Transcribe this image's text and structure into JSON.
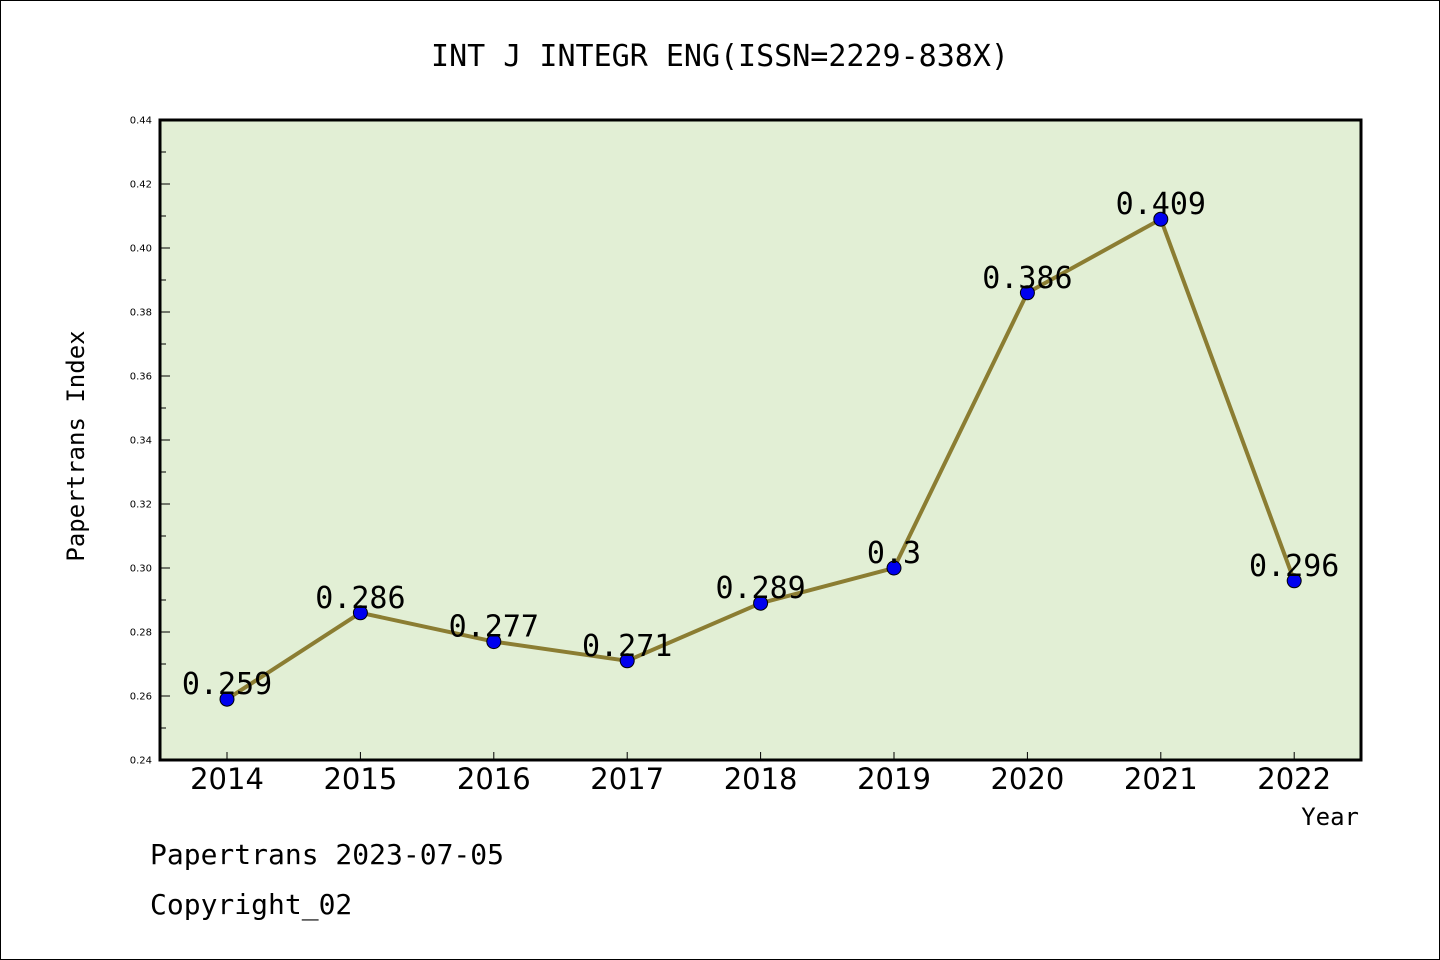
{
  "chart_data": {
    "type": "line",
    "title": "INT J INTEGR ENG(ISSN=2229-838X)",
    "xlabel": "Year",
    "ylabel": "Papertrans Index",
    "categories": [
      "2014",
      "2015",
      "2016",
      "2017",
      "2018",
      "2019",
      "2020",
      "2021",
      "2022"
    ],
    "series": [
      {
        "values": [
          0.259,
          0.286,
          0.277,
          0.271,
          0.289,
          0.3,
          0.386,
          0.409,
          0.296
        ],
        "data_labels": [
          "0.259",
          "0.286",
          "0.277",
          "0.271",
          "0.289",
          "0.3",
          "0.386",
          "0.409",
          "0.296"
        ],
        "line_color": "#8b7d32",
        "marker_color": "#0000ee"
      }
    ],
    "ylim": [
      0.24,
      0.44
    ],
    "yticks": [
      "0.24",
      "0.26",
      "0.28",
      "0.30",
      "0.32",
      "0.34",
      "0.36",
      "0.38",
      "0.40",
      "0.42",
      "0.44"
    ],
    "plot_background": "#e2efd5",
    "grid": false,
    "legend": "none"
  },
  "footer": {
    "line1": "Papertrans 2023-07-05",
    "line2": "Copyright_02"
  }
}
